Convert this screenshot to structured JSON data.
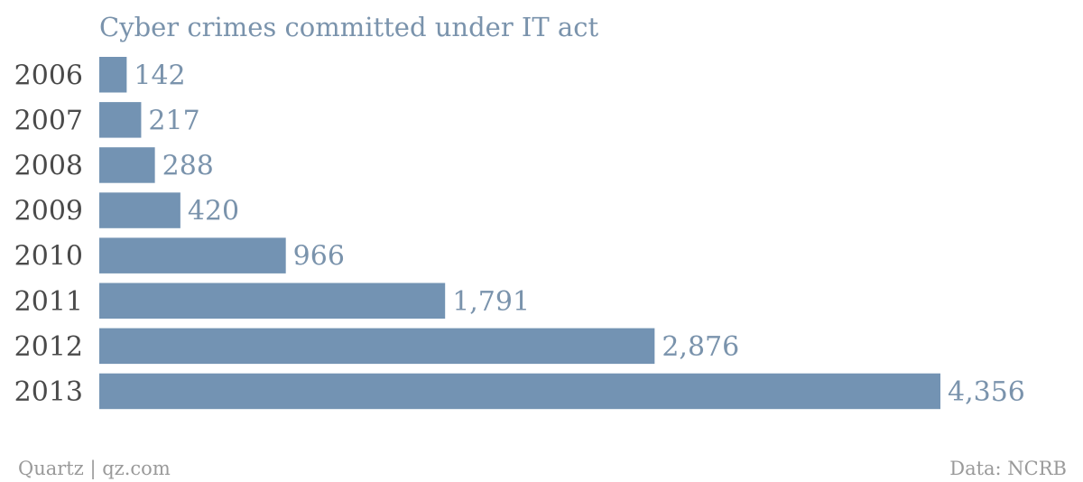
{
  "chart_data": {
    "type": "bar",
    "orientation": "horizontal",
    "title": "Cyber crimes committed under IT act",
    "categories": [
      "2006",
      "2007",
      "2008",
      "2009",
      "2010",
      "2011",
      "2012",
      "2013"
    ],
    "values": [
      142,
      217,
      288,
      420,
      966,
      1791,
      2876,
      4356
    ],
    "value_labels": [
      "142",
      "217",
      "288",
      "420",
      "966",
      "1,791",
      "2,876",
      "4,356"
    ],
    "xlim": [
      0,
      4356
    ],
    "grid": false,
    "legend": "none",
    "bar_color": "#7393b3"
  },
  "footer": {
    "credit": "Quartz | qz.com",
    "source": "Data: NCRB"
  }
}
